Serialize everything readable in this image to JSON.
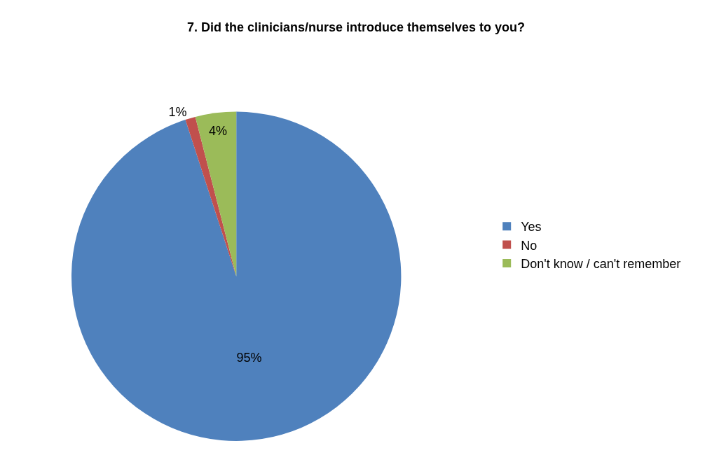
{
  "chart_data": {
    "type": "pie",
    "title": "7. Did the clinicians/nurse introduce themselves to you?",
    "categories": [
      "Yes",
      "No",
      "Don't know / can't remember"
    ],
    "values": [
      95,
      1,
      4
    ],
    "colors": [
      "#4f81bd",
      "#c0504d",
      "#9bbb59"
    ],
    "value_labels": [
      "95%",
      "1%",
      "4%"
    ],
    "legend": "right"
  }
}
